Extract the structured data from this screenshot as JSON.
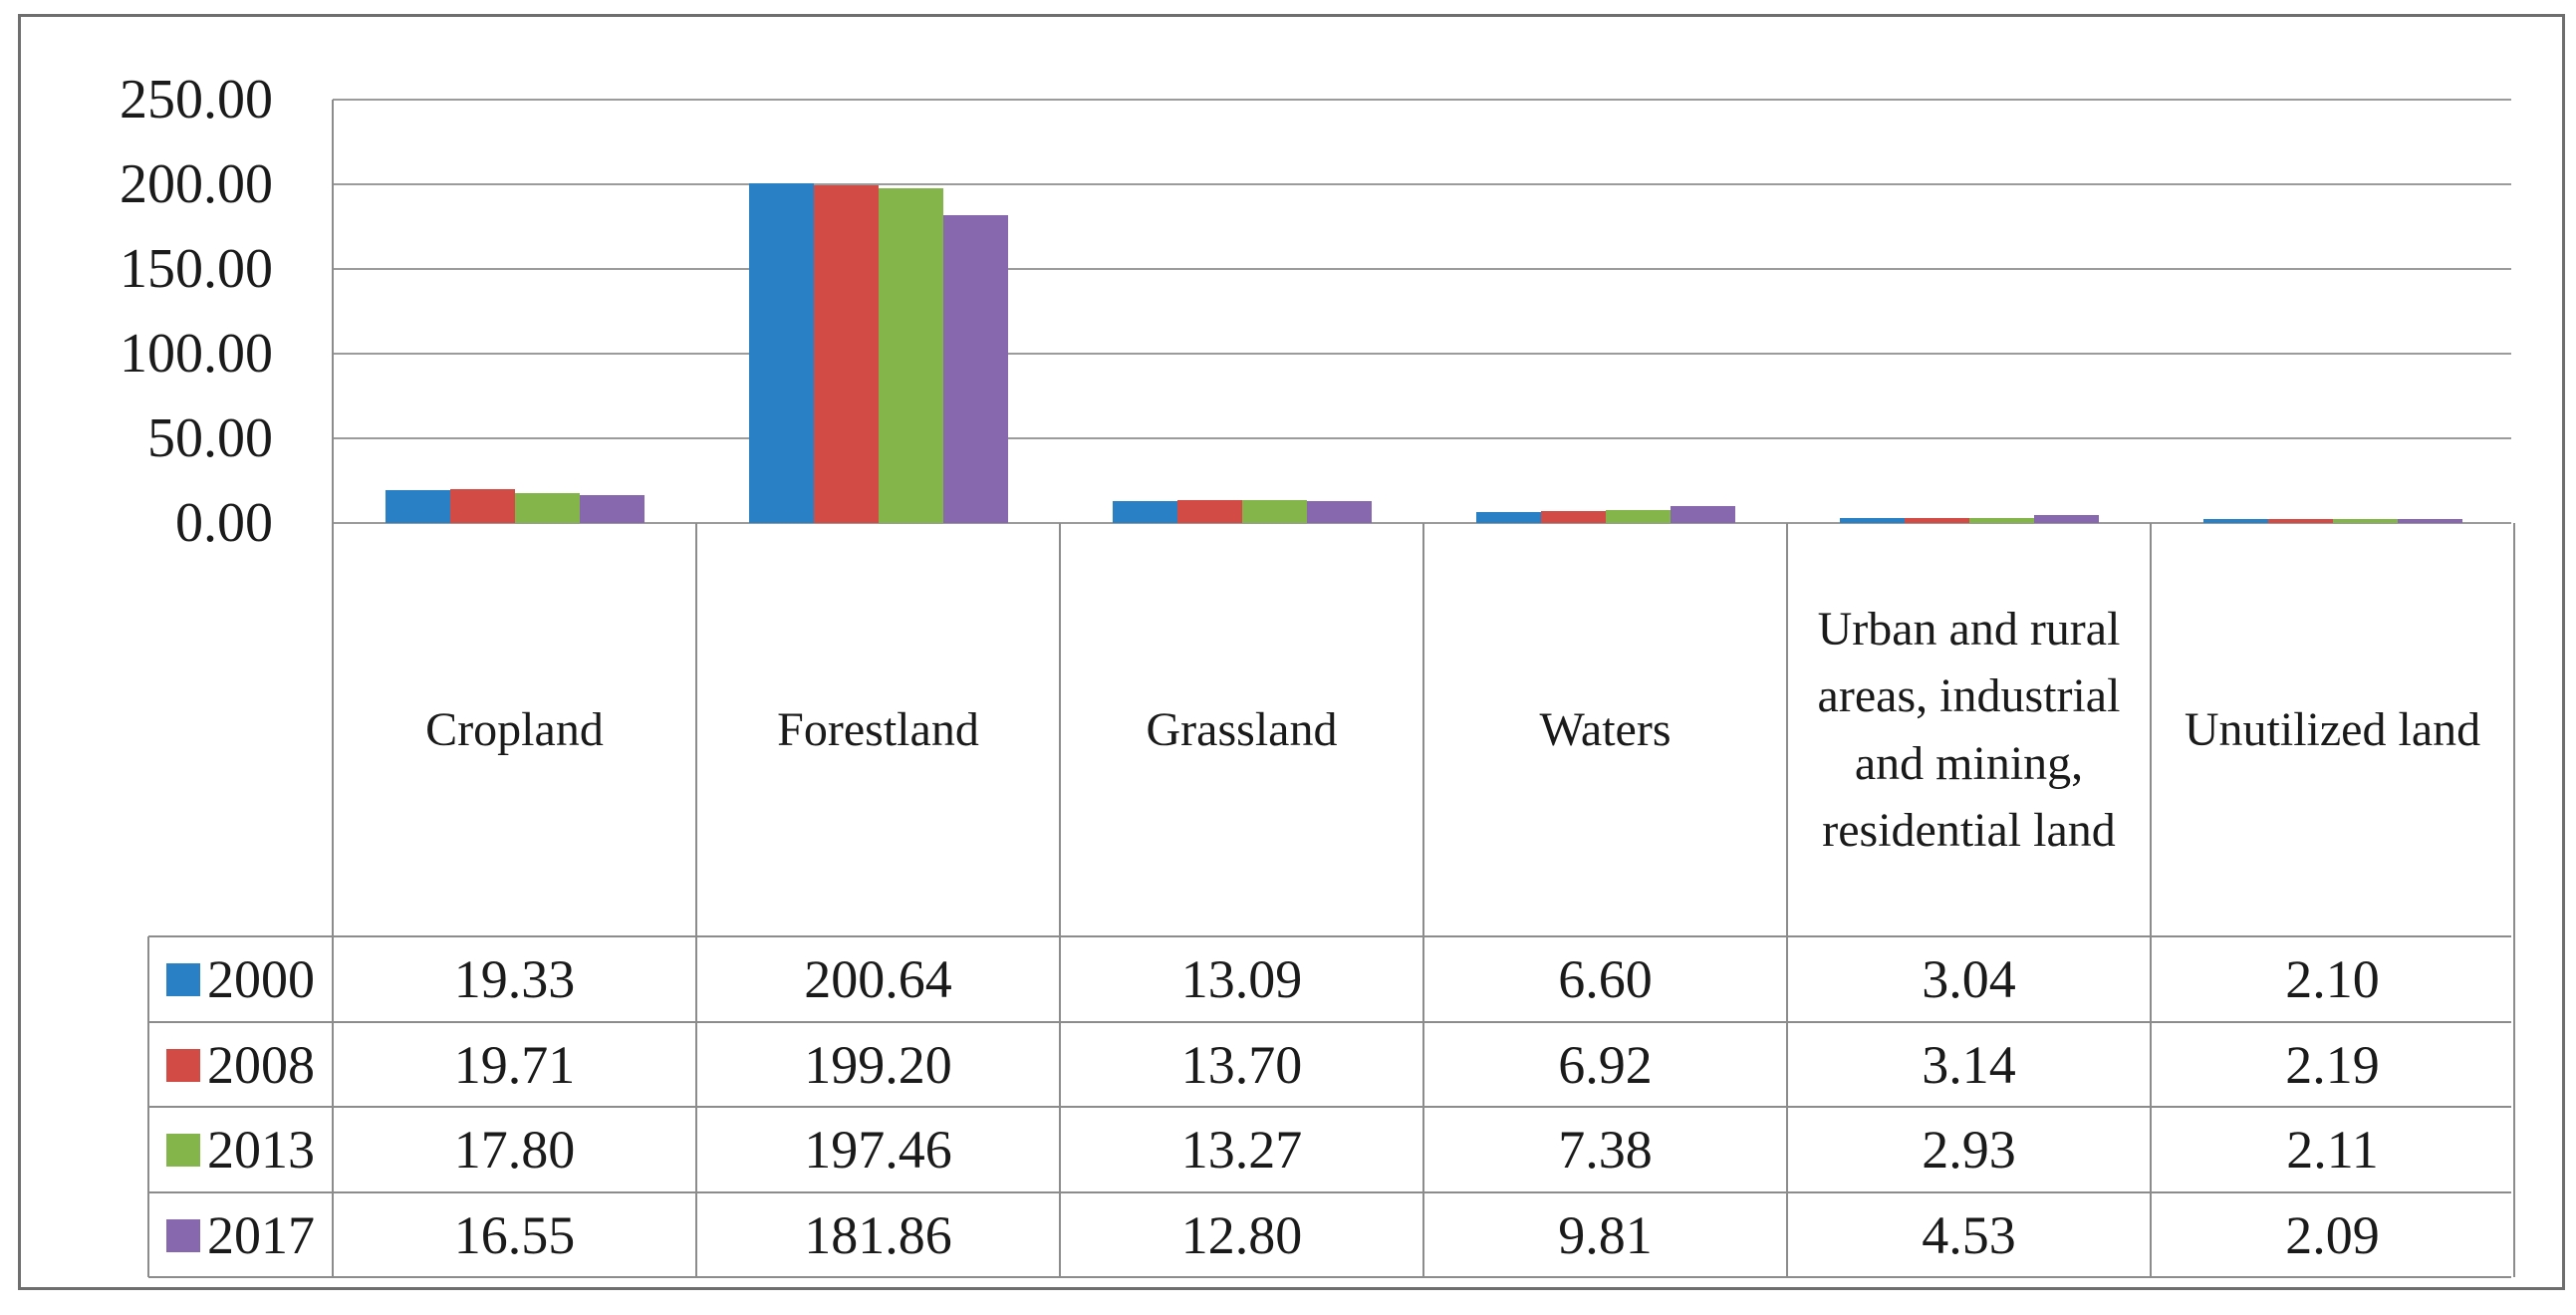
{
  "chart_data": {
    "type": "bar",
    "title": "",
    "categories": [
      "Cropland",
      "Forestland",
      "Grassland",
      "Waters",
      "Urban and rural areas, industrial and mining, residential land",
      "Unutilized land"
    ],
    "series": [
      {
        "name": "2000",
        "color": "#2980c4",
        "values": [
          19.33,
          200.64,
          13.09,
          6.6,
          3.04,
          2.1
        ]
      },
      {
        "name": "2008",
        "color": "#d24b45",
        "values": [
          19.71,
          199.2,
          13.7,
          6.92,
          3.14,
          2.19
        ]
      },
      {
        "name": "2013",
        "color": "#84b54a",
        "values": [
          17.8,
          197.46,
          13.27,
          7.38,
          2.93,
          2.11
        ]
      },
      {
        "name": "2017",
        "color": "#8767ae",
        "values": [
          16.55,
          181.86,
          12.8,
          9.81,
          4.53,
          2.09
        ]
      }
    ],
    "ylim": [
      0,
      250
    ],
    "yticks": [
      "0.00",
      "50.00",
      "100.00",
      "150.00",
      "200.00",
      "250.00"
    ],
    "value_decimals": 2,
    "grid": true,
    "gridline_color": "#9b9b9b",
    "border_color": "#8c8c8c",
    "legend_position": "data-table-left",
    "data_table_shown": true
  }
}
